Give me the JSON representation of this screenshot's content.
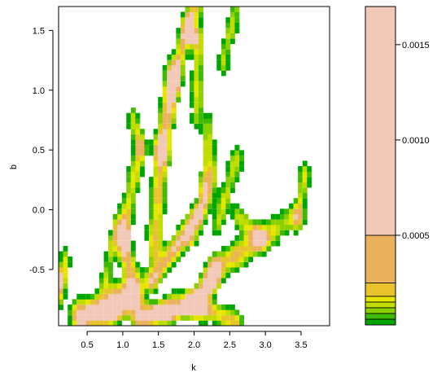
{
  "chart_data": {
    "type": "heatmap",
    "subtype": "filled-contour",
    "title": "",
    "xlabel": "k",
    "ylabel": "b",
    "xlim": [
      0.1,
      3.9
    ],
    "ylim": [
      -0.97,
      1.7
    ],
    "xticks": [
      "0.5",
      "1.0",
      "1.5",
      "2.0",
      "2.5",
      "3.0",
      "3.5"
    ],
    "yticks": [
      "-0.5",
      "0.0",
      "0.5",
      "1.0",
      "1.5"
    ],
    "legend": {
      "position": "right",
      "range": [
        3e-05,
        0.0017
      ],
      "ticks": [
        "0.0005",
        "0.0010",
        "0.0015"
      ],
      "levels": [
        3e-05,
        6e-05,
        9e-05,
        0.00012,
        0.00015,
        0.00018,
        0.00025,
        0.0005,
        0.0017
      ],
      "colors": [
        "#00A600",
        "#3EBB00",
        "#8BD000",
        "#C0DC00",
        "#E6E600",
        "#E8C32E",
        "#EBB25E",
        "#F2C9B9"
      ]
    },
    "regions": [
      {
        "name": "upper-stem",
        "k": 1.75,
        "b": 0.9,
        "width": 0.55,
        "height": 1.6,
        "level": 3
      },
      {
        "name": "upper-peak",
        "k": 1.97,
        "b": 1.45,
        "width": 0.2,
        "height": 0.12,
        "level": 7
      },
      {
        "name": "mid-peak",
        "k": 1.65,
        "b": 1.0,
        "width": 0.18,
        "height": 0.2,
        "level": 7
      },
      {
        "name": "lower-left-peak",
        "k": 0.8,
        "b": -0.85,
        "width": 0.6,
        "height": 0.2,
        "level": 7
      },
      {
        "name": "lower-middle-peak",
        "k": 1.6,
        "b": -0.85,
        "width": 0.7,
        "height": 0.15,
        "level": 6
      },
      {
        "name": "right-arm",
        "k": 3.3,
        "b": -0.2,
        "width": 0.5,
        "height": 0.6,
        "level": 2
      }
    ]
  }
}
